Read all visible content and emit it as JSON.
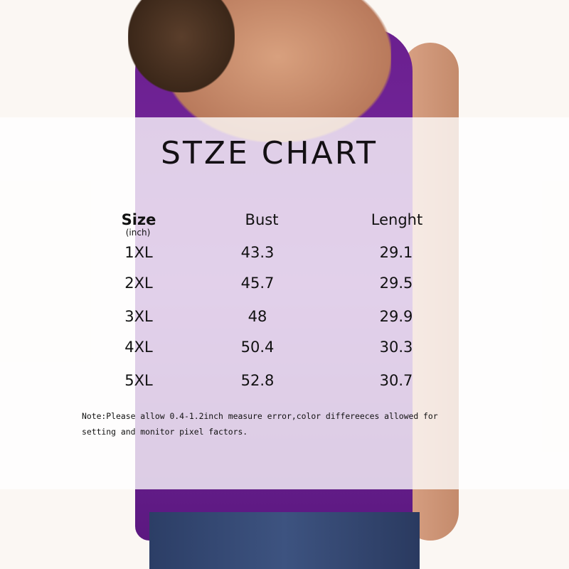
{
  "title": "STZE CHART",
  "headers": {
    "size": "Size",
    "size_unit": "(inch)",
    "bust": "Bust",
    "length": "Lenght"
  },
  "rows": [
    {
      "size": "1XL",
      "bust": "43.3",
      "length": "29.1"
    },
    {
      "size": "2XL",
      "bust": "45.7",
      "length": "29.5"
    },
    {
      "size": "3XL",
      "bust": "48",
      "length": "29.9"
    },
    {
      "size": "4XL",
      "bust": "50.4",
      "length": "30.3"
    },
    {
      "size": "5XL",
      "bust": "52.8",
      "length": "30.7"
    }
  ],
  "note_line1": "Note:Please allow 0.4-1.2inch measure error,color differeeces allowed for",
  "note_line2": "setting and monitor pixel factors.",
  "colors": {
    "garment": "#6a1f8f",
    "overlay": "#ffffff"
  }
}
